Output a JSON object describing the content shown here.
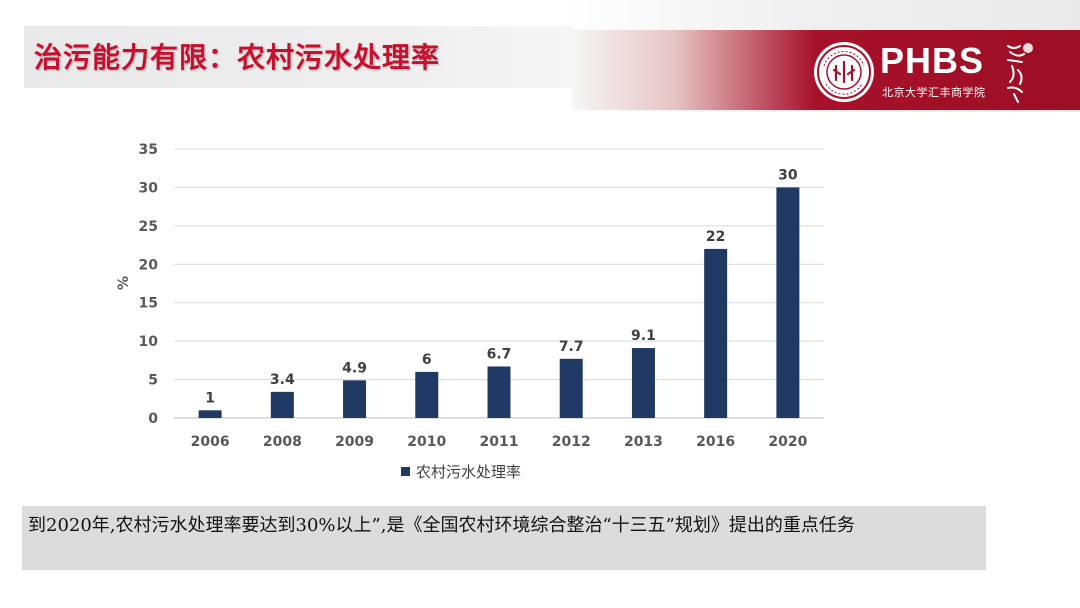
{
  "header": {
    "title": "治污能力有限：农村污水处理率",
    "brand_name": "PHBS",
    "brand_subtitle": "北京大学汇丰商学院",
    "accent_color": "#c8102e",
    "brand_color": "#a7102a"
  },
  "chart_data": {
    "type": "bar",
    "categories": [
      "2006",
      "2008",
      "2009",
      "2010",
      "2011",
      "2012",
      "2013",
      "2016",
      "2020"
    ],
    "series": [
      {
        "name": "农村污水处理率",
        "values": [
          1,
          3.4,
          4.9,
          6,
          6.7,
          7.7,
          9.1,
          22,
          30
        ],
        "data_labels": [
          "1",
          "3.4",
          "4.9",
          "6",
          "6.7",
          "7.7",
          "9.1",
          "22",
          "30"
        ],
        "color": "#1f3864"
      }
    ],
    "ylabel": "%",
    "ylim": [
      0,
      35
    ],
    "yticks": [
      "0",
      "5",
      "10",
      "15",
      "20",
      "25",
      "30",
      "35"
    ],
    "grid": true,
    "legend": "bottom"
  },
  "note": {
    "text": "到2020年,农村污水处理率要达到30%以上”,是《全国农村环境综合整治“十三五”规划》提出的重点任务"
  }
}
